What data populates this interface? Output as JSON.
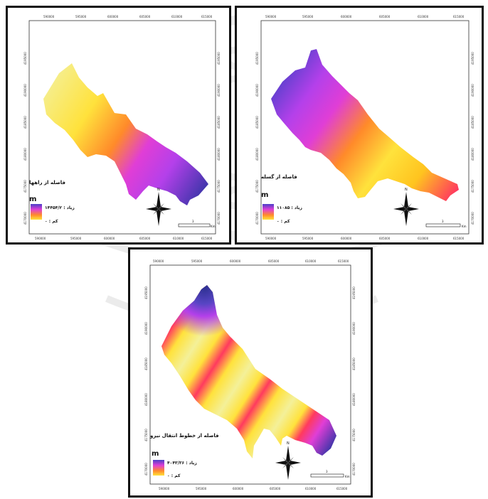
{
  "colors": {
    "ramp": [
      "#f4f099",
      "#ffe23c",
      "#ffc41f",
      "#ff8a2a",
      "#ff3a5e",
      "#e03ed6",
      "#b440ea",
      "#5845c4",
      "#2b2f8f"
    ],
    "frame": "#111111",
    "watermark": "#8a8a8a"
  },
  "maps": [
    {
      "title": "فاصله از راهها",
      "unit": "m",
      "high_label": "زیاد : ۱۴۴۵۴/۲",
      "low_label": "کم : ۰",
      "north_letter": "N",
      "scale_label": "Km",
      "scale_number": "3",
      "top_ticks": [
        "590000",
        "595000",
        "600000",
        "605000",
        "610000",
        "615000"
      ],
      "bottom_ticks": [
        "590000",
        "595000",
        "600000",
        "605000",
        "610000",
        "615000"
      ],
      "left_ticks": [
        "4195000",
        "4190000",
        "4185000",
        "4180000",
        "4175000",
        "4170000"
      ],
      "right_ticks": [
        "4195000",
        "4190000",
        "4185000",
        "4180000",
        "4175000",
        "4170000"
      ]
    },
    {
      "title": "فاصله از گسله",
      "unit": "m",
      "high_label": "زیاد : ۱۱۰۸۵",
      "low_label": "کم : ۰",
      "north_letter": "N",
      "scale_label": "Km",
      "scale_number": "3",
      "top_ticks": [
        "590000",
        "595000",
        "600000",
        "605000",
        "610000",
        "615000"
      ],
      "bottom_ticks": [
        "590000",
        "595000",
        "600000",
        "605000",
        "610000",
        "615000"
      ],
      "left_ticks": [
        "4195000",
        "4190000",
        "4185000",
        "4180000",
        "4175000",
        "4170000"
      ],
      "right_ticks": [
        "4195000",
        "4190000",
        "4185000",
        "4180000",
        "4175000",
        "4170000"
      ]
    },
    {
      "title": "فاصله از خطوط انتقال نیرو",
      "unit": "m",
      "high_label": "زیاد : ۴۰۴۳/۳۶",
      "low_label": "کم : ۰",
      "north_letter": "N",
      "scale_label": "Km",
      "scale_number": "3",
      "top_ticks": [
        "590000",
        "595000",
        "600000",
        "605000",
        "610000",
        "615000"
      ],
      "bottom_ticks": [
        "590000",
        "595000",
        "600000",
        "605000",
        "610000",
        "615000"
      ],
      "left_ticks": [
        "4195000",
        "4190000",
        "4185000",
        "4180000",
        "4175000",
        "4170000"
      ],
      "right_ticks": [
        "4195000",
        "4190000",
        "4185000",
        "4180000",
        "4175000",
        "4170000"
      ]
    }
  ]
}
